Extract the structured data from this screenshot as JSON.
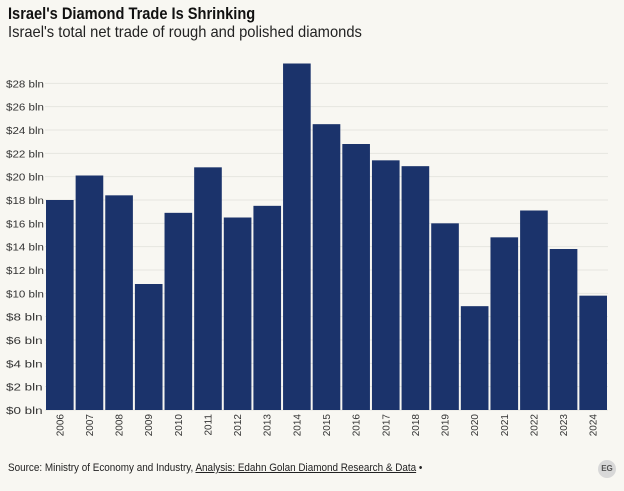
{
  "header": {
    "title": "Israel's Diamond Trade Is Shrinking",
    "subtitle": "Israel's total net trade of rough and polished diamonds"
  },
  "footer": {
    "source_prefix": "Source: Ministry of Economy and Industry, ",
    "analysis_link": "Analysis: Edahn Golan Diamond Research & Data",
    "bullet": " •",
    "logo": "EG"
  },
  "colors": {
    "bar": "#1b336b",
    "grid": "#e6e6e0",
    "background": "#f8f7f2"
  },
  "chart_data": {
    "type": "bar",
    "title": "Israel's Diamond Trade Is Shrinking",
    "subtitle": "Israel's total net trade of rough and polished diamonds",
    "xlabel": "",
    "ylabel": "",
    "categories": [
      "2006",
      "2007",
      "2008",
      "2009",
      "2010",
      "2011",
      "2012",
      "2013",
      "2014",
      "2015",
      "2016",
      "2017",
      "2018",
      "2019",
      "2020",
      "2021",
      "2022",
      "2023",
      "2024"
    ],
    "values": [
      18.0,
      20.1,
      18.4,
      10.8,
      16.9,
      20.8,
      16.5,
      17.5,
      29.7,
      24.5,
      22.8,
      21.4,
      20.9,
      16.0,
      8.9,
      14.8,
      17.1,
      13.8,
      9.8
    ],
    "unit": "bln",
    "ylim": [
      0,
      30
    ],
    "yticks": [
      0,
      2,
      4,
      6,
      8,
      10,
      12,
      14,
      16,
      18,
      20,
      22,
      24,
      26,
      28
    ],
    "ytick_labels": [
      "$0 bln",
      "$2 bln",
      "$4 bln",
      "$6 bln",
      "$8 bln",
      "$10 bln",
      "$12 bln",
      "$14 bln",
      "$16 bln",
      "$18 bln",
      "$20 bln",
      "$22 bln",
      "$24 bln",
      "$26 bln",
      "$28 bln"
    ],
    "grid": true,
    "legend": "none"
  }
}
